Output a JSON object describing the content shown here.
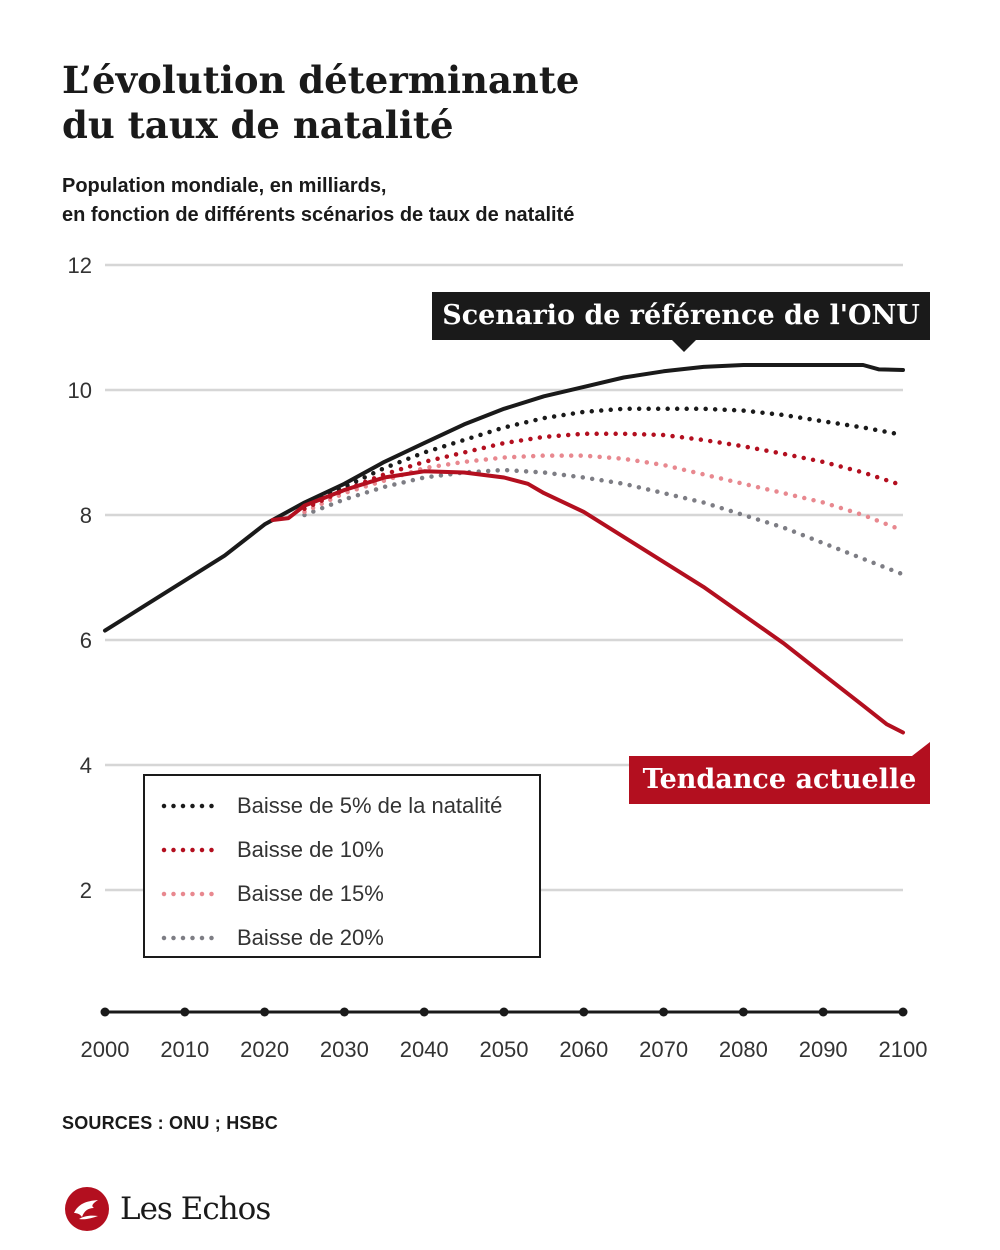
{
  "title": {
    "line1": "L’évolution déterminante",
    "line2": "du taux de natalité"
  },
  "subtitle": {
    "line1": "Population mondiale, en milliards,",
    "line2": "en fonction de différents scénarios de taux de natalité"
  },
  "chart_data": {
    "type": "line",
    "xlabel": "",
    "ylabel": "",
    "xlim": [
      2000,
      2100
    ],
    "ylim": [
      0,
      12
    ],
    "x_ticks": [
      2000,
      2010,
      2020,
      2030,
      2040,
      2050,
      2060,
      2070,
      2080,
      2090,
      2100
    ],
    "y_ticks": [
      2,
      4,
      6,
      8,
      10,
      12
    ],
    "grid": true,
    "series": [
      {
        "name": "Scenario de référence de l'ONU",
        "color": "#1a1a1a",
        "style": "solid",
        "x": [
          2000,
          2005,
          2010,
          2015,
          2020,
          2025,
          2030,
          2035,
          2040,
          2045,
          2050,
          2055,
          2060,
          2065,
          2070,
          2075,
          2080,
          2085,
          2090,
          2095,
          2097,
          2100
        ],
        "y": [
          6.15,
          6.55,
          6.95,
          7.35,
          7.85,
          8.2,
          8.5,
          8.85,
          9.15,
          9.45,
          9.7,
          9.9,
          10.05,
          10.2,
          10.3,
          10.37,
          10.4,
          10.4,
          10.4,
          10.4,
          10.33,
          10.32
        ]
      },
      {
        "name": "Baisse de 5% de la natalité",
        "color": "#1a1a1a",
        "style": "dotted",
        "x": [
          2025,
          2030,
          2035,
          2040,
          2045,
          2050,
          2055,
          2060,
          2065,
          2070,
          2075,
          2080,
          2085,
          2090,
          2095,
          2100
        ],
        "y": [
          8.15,
          8.45,
          8.75,
          9.0,
          9.2,
          9.4,
          9.55,
          9.65,
          9.7,
          9.7,
          9.7,
          9.67,
          9.6,
          9.5,
          9.4,
          9.28
        ]
      },
      {
        "name": "Baisse de 10%",
        "color": "#b30f1f",
        "style": "dotted",
        "x": [
          2025,
          2030,
          2035,
          2040,
          2045,
          2050,
          2055,
          2060,
          2065,
          2070,
          2075,
          2080,
          2085,
          2090,
          2095,
          2100
        ],
        "y": [
          8.1,
          8.4,
          8.65,
          8.85,
          9.0,
          9.15,
          9.25,
          9.3,
          9.3,
          9.28,
          9.2,
          9.1,
          8.98,
          8.85,
          8.68,
          8.47
        ]
      },
      {
        "name": "Baisse de 15%",
        "color": "#e8888f",
        "style": "dotted",
        "x": [
          2025,
          2030,
          2035,
          2040,
          2045,
          2050,
          2055,
          2060,
          2065,
          2070,
          2075,
          2080,
          2085,
          2090,
          2095,
          2100
        ],
        "y": [
          8.05,
          8.35,
          8.55,
          8.75,
          8.85,
          8.92,
          8.95,
          8.95,
          8.9,
          8.8,
          8.65,
          8.5,
          8.35,
          8.2,
          8.0,
          7.75
        ]
      },
      {
        "name": "Baisse de 20%",
        "color": "#7d7d84",
        "style": "dotted",
        "x": [
          2025,
          2030,
          2035,
          2040,
          2045,
          2050,
          2055,
          2060,
          2065,
          2070,
          2075,
          2080,
          2085,
          2090,
          2095,
          2100
        ],
        "y": [
          8.0,
          8.25,
          8.45,
          8.6,
          8.68,
          8.72,
          8.68,
          8.6,
          8.5,
          8.35,
          8.2,
          8.0,
          7.8,
          7.55,
          7.3,
          7.05
        ]
      },
      {
        "name": "Tendance actuelle",
        "color": "#b30f1f",
        "style": "solid",
        "x": [
          2021,
          2023,
          2025,
          2030,
          2035,
          2040,
          2045,
          2050,
          2053,
          2055,
          2060,
          2065,
          2070,
          2075,
          2080,
          2085,
          2090,
          2095,
          2098,
          2100
        ],
        "y": [
          7.92,
          7.95,
          8.15,
          8.4,
          8.6,
          8.7,
          8.68,
          8.6,
          8.5,
          8.35,
          8.05,
          7.65,
          7.25,
          6.85,
          6.4,
          5.95,
          5.45,
          4.95,
          4.65,
          4.52
        ]
      }
    ]
  },
  "callouts": {
    "reference": "Scenario de référence de l'ONU",
    "trend": "Tendance actuelle"
  },
  "legend": {
    "items": [
      {
        "label": "Baisse de 5% de la natalité",
        "color": "#1a1a1a"
      },
      {
        "label": "Baisse de 10%",
        "color": "#b30f1f"
      },
      {
        "label": "Baisse de 15%",
        "color": "#e8888f"
      },
      {
        "label": "Baisse de 20%",
        "color": "#7d7d84"
      }
    ]
  },
  "sources": "SOURCES : ONU ; HSBC",
  "brand": {
    "name": "Les Echos",
    "color": "#b30f1f"
  }
}
